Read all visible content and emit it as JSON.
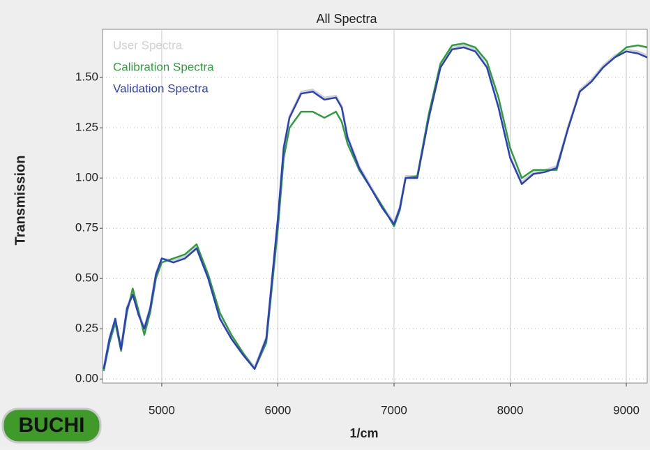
{
  "chart_data": {
    "type": "line",
    "title": "All Spectra",
    "x_label": "1/cm",
    "y_label": "Transmission",
    "logo": "BUCHI",
    "x": [
      4500,
      4550,
      4600,
      4650,
      4700,
      4750,
      4800,
      4850,
      4900,
      4950,
      5000,
      5100,
      5200,
      5300,
      5400,
      5500,
      5600,
      5700,
      5800,
      5900,
      6000,
      6050,
      6100,
      6200,
      6300,
      6400,
      6500,
      6550,
      6600,
      6700,
      6800,
      6900,
      7000,
      7050,
      7100,
      7200,
      7300,
      7400,
      7500,
      7600,
      7700,
      7800,
      7900,
      8000,
      8100,
      8200,
      8300,
      8400,
      8500,
      8600,
      8700,
      8800,
      8900,
      9000,
      9100,
      9180
    ],
    "series": [
      {
        "name": "User Spectra",
        "color": "#d0d0d0",
        "values": [
          0.06,
          0.21,
          0.3,
          0.16,
          0.36,
          0.43,
          0.33,
          0.26,
          0.36,
          0.53,
          0.6,
          0.59,
          0.61,
          0.66,
          0.51,
          0.31,
          0.21,
          0.13,
          0.06,
          0.21,
          0.81,
          1.16,
          1.31,
          1.43,
          1.44,
          1.4,
          1.41,
          1.36,
          1.21,
          1.06,
          0.96,
          0.86,
          0.78,
          0.86,
          1.01,
          1.01,
          1.31,
          1.56,
          1.65,
          1.66,
          1.64,
          1.56,
          1.36,
          1.11,
          0.98,
          1.03,
          1.04,
          1.06,
          1.26,
          1.44,
          1.49,
          1.56,
          1.61,
          1.64,
          1.63,
          1.61
        ]
      },
      {
        "name": "Calibration Spectra",
        "color": "#2e9e3a",
        "values": [
          0.04,
          0.18,
          0.28,
          0.14,
          0.33,
          0.45,
          0.34,
          0.22,
          0.33,
          0.5,
          0.58,
          0.6,
          0.62,
          0.67,
          0.52,
          0.33,
          0.22,
          0.13,
          0.05,
          0.18,
          0.75,
          1.1,
          1.25,
          1.33,
          1.33,
          1.3,
          1.33,
          1.28,
          1.17,
          1.04,
          0.95,
          0.86,
          0.76,
          0.84,
          1.0,
          1.01,
          1.32,
          1.57,
          1.66,
          1.67,
          1.65,
          1.58,
          1.4,
          1.15,
          1.0,
          1.04,
          1.04,
          1.04,
          1.25,
          1.43,
          1.48,
          1.55,
          1.6,
          1.65,
          1.66,
          1.65
        ]
      },
      {
        "name": "Validation Spectra",
        "color": "#2b3fc0",
        "values": [
          0.05,
          0.2,
          0.3,
          0.15,
          0.35,
          0.42,
          0.32,
          0.25,
          0.35,
          0.52,
          0.6,
          0.58,
          0.6,
          0.65,
          0.5,
          0.3,
          0.2,
          0.12,
          0.05,
          0.2,
          0.8,
          1.15,
          1.3,
          1.42,
          1.43,
          1.39,
          1.4,
          1.35,
          1.2,
          1.05,
          0.95,
          0.85,
          0.77,
          0.85,
          1.0,
          1.0,
          1.3,
          1.55,
          1.64,
          1.65,
          1.63,
          1.55,
          1.35,
          1.1,
          0.97,
          1.02,
          1.03,
          1.05,
          1.25,
          1.43,
          1.48,
          1.55,
          1.6,
          1.63,
          1.62,
          1.6
        ]
      }
    ],
    "xlim": [
      4490,
      9180
    ],
    "ylim": [
      -0.02,
      1.74
    ],
    "xticks": [
      5000,
      6000,
      7000,
      8000,
      9000
    ],
    "yticks": [
      {
        "value": 0,
        "label": "0.00"
      },
      {
        "value": 0.25,
        "label": "0.25"
      },
      {
        "value": 0.5,
        "label": "0.50"
      },
      {
        "value": 0.75,
        "label": "0.75"
      },
      {
        "value": 1,
        "label": "1.00"
      },
      {
        "value": 1.25,
        "label": "1.25"
      },
      {
        "value": 1.5,
        "label": "1.50"
      }
    ],
    "grid": true,
    "legend": "upper left"
  }
}
